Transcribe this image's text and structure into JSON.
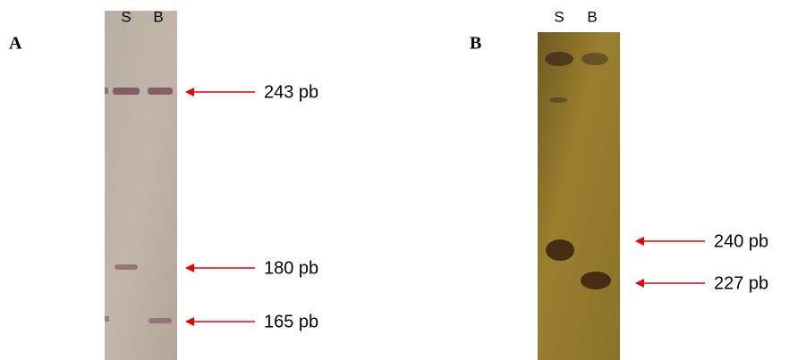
{
  "panels": [
    {
      "label": "A",
      "lanes": [
        "S",
        "B"
      ],
      "bands": [
        "243 pb",
        "180 pb",
        "165 pb"
      ]
    },
    {
      "label": "B",
      "lanes": [
        "S",
        "B"
      ],
      "bands": [
        "240 pb",
        "227 pb"
      ]
    }
  ]
}
